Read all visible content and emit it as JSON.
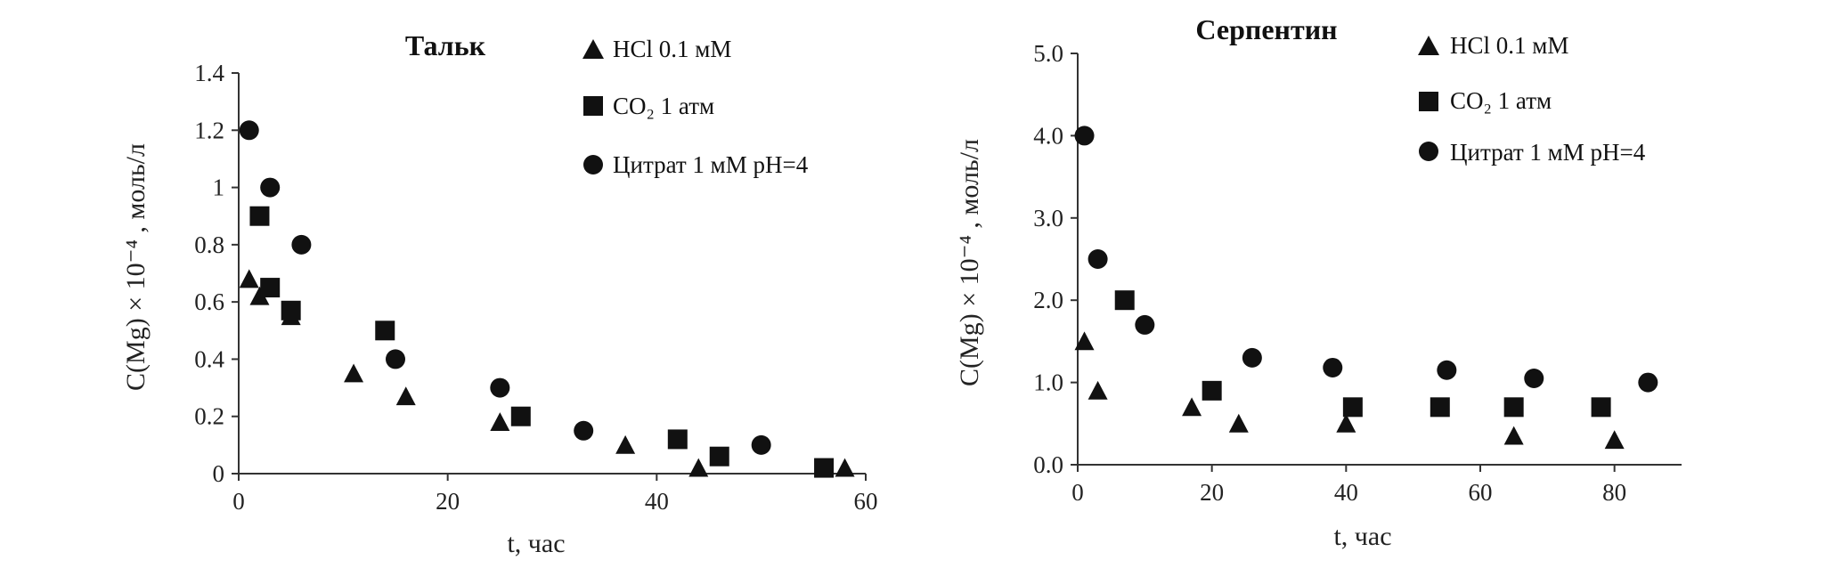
{
  "chart_data": [
    {
      "type": "scatter",
      "title": "Тальк",
      "xlabel": "t, час",
      "ylabel": "C(Mg) × 10⁻⁴ , моль/л",
      "xlim": [
        0,
        60
      ],
      "ylim": [
        0,
        1.4
      ],
      "xticks": [
        "0",
        "20",
        "40",
        "60"
      ],
      "yticks": [
        "0",
        "0.2",
        "0.4",
        "0.6",
        "0.8",
        "1",
        "1.2",
        "1.4"
      ],
      "grid": false,
      "legend": "top-right",
      "series": [
        {
          "name": "HCl 0.1 мМ",
          "marker": "triangle",
          "points": [
            [
              1,
              0.68
            ],
            [
              2,
              0.62
            ],
            [
              5,
              0.55
            ],
            [
              11,
              0.35
            ],
            [
              16,
              0.27
            ],
            [
              25,
              0.18
            ],
            [
              37,
              0.1
            ],
            [
              44,
              0.02
            ],
            [
              58,
              0.02
            ]
          ]
        },
        {
          "name": "CO₂  1 атм",
          "marker": "square",
          "points": [
            [
              2,
              0.9
            ],
            [
              3,
              0.65
            ],
            [
              5,
              0.57
            ],
            [
              14,
              0.5
            ],
            [
              27,
              0.2
            ],
            [
              42,
              0.12
            ],
            [
              46,
              0.06
            ],
            [
              56,
              0.02
            ]
          ]
        },
        {
          "name": "Цитрат 1 мМ pH=4",
          "marker": "circle",
          "points": [
            [
              1,
              1.2
            ],
            [
              3,
              1.0
            ],
            [
              6,
              0.8
            ],
            [
              15,
              0.4
            ],
            [
              25,
              0.3
            ],
            [
              33,
              0.15
            ],
            [
              50,
              0.1
            ]
          ]
        }
      ]
    },
    {
      "type": "scatter",
      "title": "Серпентин",
      "xlabel": "t, час",
      "ylabel": "C(Mg) × 10⁻⁴ , моль/л",
      "xlim": [
        0,
        90
      ],
      "ylim": [
        0,
        5
      ],
      "xticks": [
        "0",
        "20",
        "40",
        "60",
        "80"
      ],
      "yticks": [
        "0.0",
        "1.0",
        "2.0",
        "3.0",
        "4.0",
        "5.0"
      ],
      "grid": false,
      "legend": "top-right",
      "series": [
        {
          "name": "HCl 0.1 мМ",
          "marker": "triangle",
          "points": [
            [
              1,
              1.5
            ],
            [
              3,
              0.9
            ],
            [
              17,
              0.7
            ],
            [
              24,
              0.5
            ],
            [
              40,
              0.5
            ],
            [
              65,
              0.35
            ],
            [
              80,
              0.3
            ]
          ]
        },
        {
          "name": "CO₂ 1 атм",
          "marker": "square",
          "points": [
            [
              7,
              2.0
            ],
            [
              20,
              0.9
            ],
            [
              41,
              0.7
            ],
            [
              54,
              0.7
            ],
            [
              65,
              0.7
            ],
            [
              78,
              0.7
            ]
          ]
        },
        {
          "name": "Цитрат 1 мМ pH=4",
          "marker": "circle",
          "points": [
            [
              1,
              4.0
            ],
            [
              3,
              2.5
            ],
            [
              10,
              1.7
            ],
            [
              26,
              1.3
            ],
            [
              38,
              1.18
            ],
            [
              55,
              1.15
            ],
            [
              68,
              1.05
            ],
            [
              85,
              1.0
            ]
          ]
        }
      ]
    }
  ]
}
